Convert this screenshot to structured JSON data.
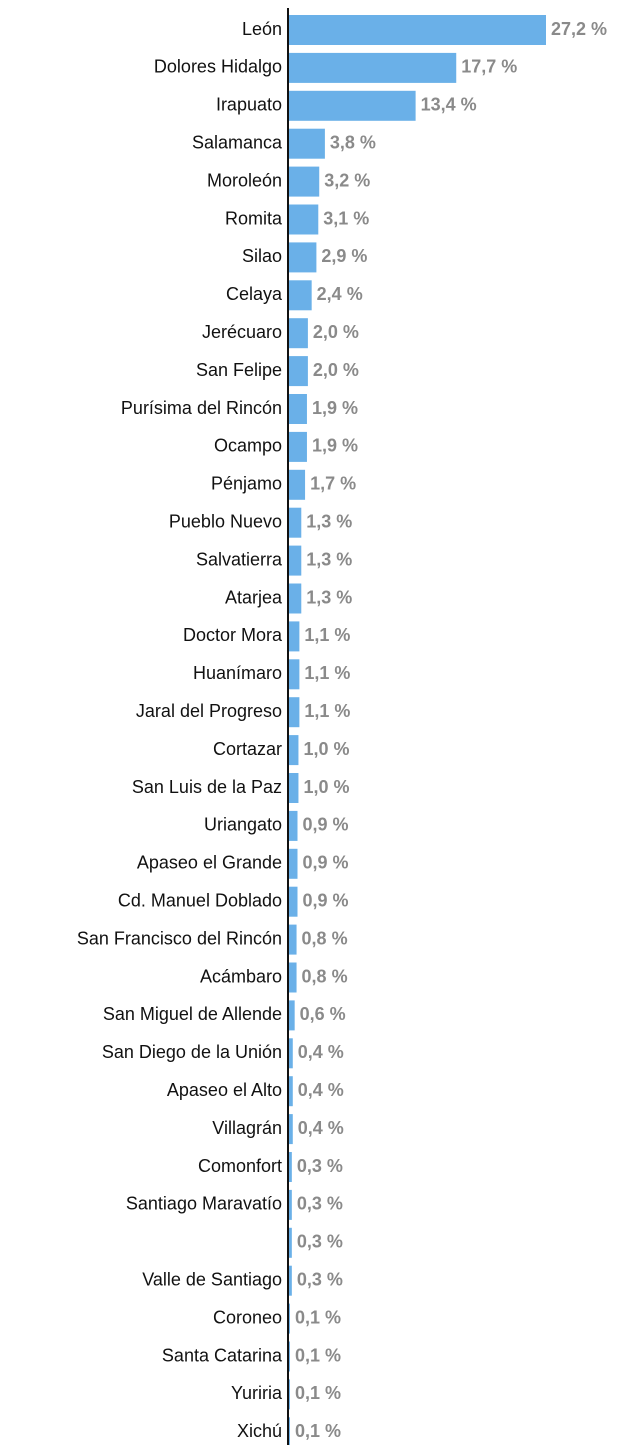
{
  "chart_data": {
    "type": "bar",
    "orientation": "horizontal",
    "color": "#6ab0e8",
    "categories": [
      "León",
      "Dolores Hidalgo",
      "Irapuato",
      "Salamanca",
      "Moroleón",
      "Romita",
      "Silao",
      "Celaya",
      "Jerécuaro",
      "San Felipe",
      "Purísima del Rincón",
      "Ocampo",
      "Pénjamo",
      "Pueblo Nuevo",
      "Salvatierra",
      "Atarjea",
      "Doctor Mora",
      "Huanímaro",
      "Jaral del Progreso",
      "Cortazar",
      "San Luis de la Paz",
      "Uriangato",
      "Apaseo el Grande",
      "Cd. Manuel Doblado",
      "San Francisco del Rincón",
      "Acámbaro",
      "San Miguel de Allende",
      "San Diego de la Unión",
      "Apaseo el Alto",
      "Villagrán",
      "Comonfort",
      "Santiago Maravatío",
      null,
      "Valle de Santiago",
      "Coroneo",
      "Santa Catarina",
      "Yuriria",
      "Xichú"
    ],
    "values": [
      27.2,
      17.7,
      13.4,
      3.8,
      3.2,
      3.1,
      2.9,
      2.4,
      2.0,
      2.0,
      1.9,
      1.9,
      1.7,
      1.3,
      1.3,
      1.3,
      1.1,
      1.1,
      1.1,
      1.0,
      1.0,
      0.9,
      0.9,
      0.9,
      0.8,
      0.8,
      0.6,
      0.4,
      0.4,
      0.4,
      0.3,
      0.3,
      0.3,
      0.3,
      0.1,
      0.1,
      0.1,
      0.1
    ],
    "value_labels": [
      "27,2 %",
      "17,7 %",
      "13,4 %",
      "3,8 %",
      "3,2 %",
      "3,1 %",
      "2,9 %",
      "2,4 %",
      "2,0 %",
      "2,0 %",
      "1,9 %",
      "1,9 %",
      "1,7 %",
      "1,3 %",
      "1,3 %",
      "1,3 %",
      "1,1 %",
      "1,1 %",
      "1,1 %",
      "1,0 %",
      "1,0 %",
      "0,9 %",
      "0,9 %",
      "0,9 %",
      "0,8 %",
      "0,8 %",
      "0,6 %",
      "0,4 %",
      "0,4 %",
      "0,4 %",
      "0,3 %",
      "0,3 %",
      "0,3 %",
      "0,3 %",
      "0,1 %",
      "0,1 %",
      "0,1 %",
      "0,1 %"
    ]
  }
}
